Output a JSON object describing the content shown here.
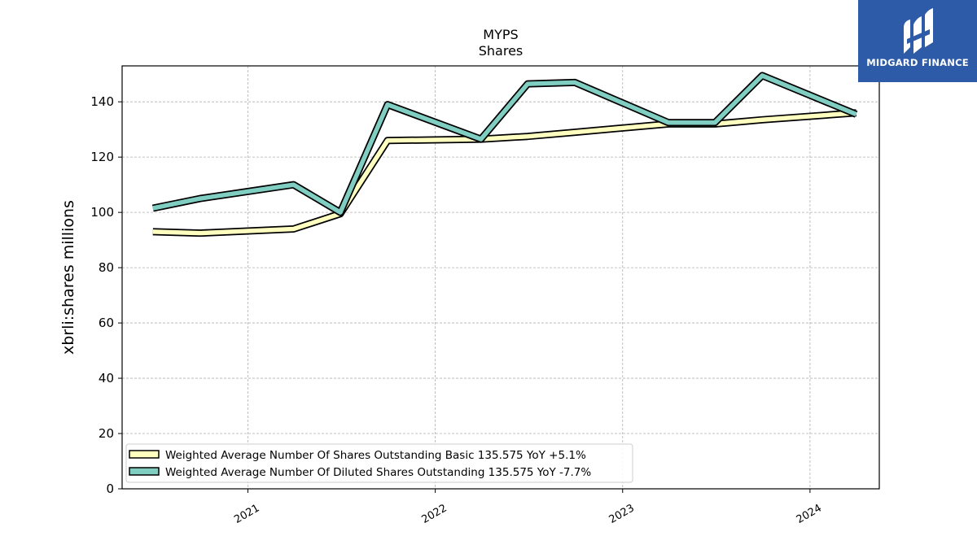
{
  "chart_data": {
    "type": "line",
    "title": "MYPS",
    "subtitle": "Shares",
    "ylabel": "xbrli:shares millions",
    "xlabel": "",
    "ylim": [
      0,
      153
    ],
    "yticks": [
      0,
      20,
      40,
      60,
      80,
      100,
      120,
      140
    ],
    "xlim": [
      "2020-05-01",
      "2024-05-15"
    ],
    "xticks": [
      {
        "label": "2021",
        "date": "2021-01-01"
      },
      {
        "label": "2022",
        "date": "2022-01-01"
      },
      {
        "label": "2023",
        "date": "2023-01-01"
      },
      {
        "label": "2024",
        "date": "2024-01-01"
      }
    ],
    "grid": true,
    "legend_position": "lower-left",
    "series": [
      {
        "name": "Weighted Average Number Of Shares Outstanding Basic  135.575 YoY +5.1%",
        "color": "#ffffbf",
        "x": [
          "2020-06-30",
          "2020-09-30",
          "2021-03-31",
          "2021-06-30",
          "2021-09-30",
          "2022-03-31",
          "2022-06-30",
          "2022-09-30",
          "2023-03-31",
          "2023-06-30",
          "2023-09-30",
          "2024-03-31"
        ],
        "values": [
          93,
          92.5,
          94,
          99.5,
          126,
          126.5,
          127.5,
          129,
          132,
          132,
          133.5,
          136
        ]
      },
      {
        "name": "Weighted Average Number Of Diluted Shares Outstanding  135.575 YoY -7.7%",
        "color": "#80cdc1",
        "x": [
          "2020-06-30",
          "2020-09-30",
          "2021-03-31",
          "2021-06-30",
          "2021-09-30",
          "2022-03-31",
          "2022-06-30",
          "2022-09-30",
          "2023-03-31",
          "2023-06-30",
          "2023-09-30",
          "2024-03-31"
        ],
        "values": [
          101.5,
          105,
          110,
          100,
          139,
          126.5,
          146.5,
          147,
          132.5,
          132.5,
          149.5,
          135.5
        ]
      }
    ]
  },
  "logo": {
    "text": "MIDGARD FINANCE"
  }
}
